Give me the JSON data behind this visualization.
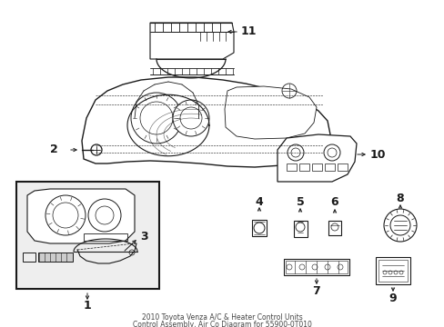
{
  "background_color": "#ffffff",
  "line_color": "#1a1a1a",
  "fig_width": 4.89,
  "fig_height": 3.6,
  "dpi": 100,
  "title_line1": "2010 Toyota Venza A/C & Heater Control Units",
  "title_line2": "Control Assembly, Air Co Diagram for 55900-0T010"
}
